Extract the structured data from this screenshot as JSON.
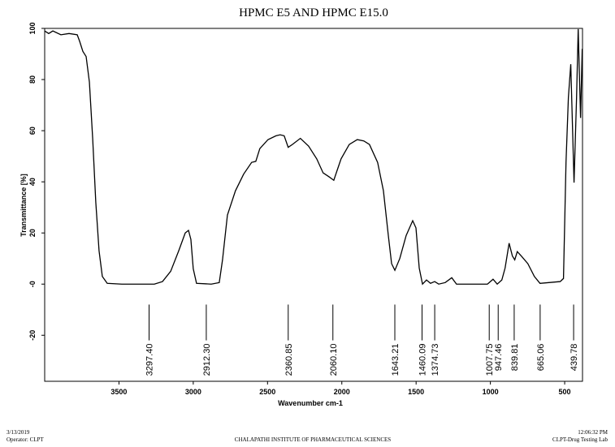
{
  "chart_data": {
    "type": "line",
    "title": "HPMC E5 AND HPMC E15.0",
    "xlabel": "Wavenumber cm-1",
    "ylabel": "Transmittance [%]",
    "xlim": [
      4000,
      380
    ],
    "ylim": [
      -38,
      100
    ],
    "xticks": [
      3500,
      3000,
      2500,
      2000,
      1500,
      1000,
      500
    ],
    "yticks": [
      100,
      80,
      60,
      40,
      20,
      {
        "value": 0,
        "label": "-0"
      },
      -20
    ],
    "color": "#000000",
    "x": [
      4000,
      3973,
      3945,
      3891,
      3836,
      3781,
      3765,
      3743,
      3721,
      3699,
      3677,
      3656,
      3634,
      3612,
      3579,
      3481,
      3371,
      3262,
      3207,
      3152,
      3098,
      3054,
      3032,
      3016,
      3000,
      2978,
      2879,
      2825,
      2803,
      2770,
      2716,
      2661,
      2607,
      2579,
      2552,
      2497,
      2443,
      2415,
      2388,
      2361,
      2333,
      2279,
      2224,
      2169,
      2126,
      2087,
      2054,
      2032,
      2005,
      1950,
      1896,
      1852,
      1814,
      1759,
      1720,
      1687,
      1665,
      1643,
      1610,
      1567,
      1523,
      1501,
      1479,
      1457,
      1430,
      1403,
      1375,
      1348,
      1304,
      1260,
      1228,
      1129,
      1020,
      982,
      954,
      923,
      901,
      874,
      852,
      836,
      819,
      792,
      748,
      704,
      666,
      530,
      508,
      491,
      475,
      459,
      437,
      420,
      409,
      393,
      382
    ],
    "values": [
      99,
      98,
      99,
      97.5,
      98,
      97.5,
      95,
      91,
      89,
      79,
      57,
      32,
      13,
      3,
      0.3,
      0,
      0,
      0,
      1,
      5,
      13,
      20,
      21,
      17.5,
      6,
      0.3,
      0,
      0.6,
      9.5,
      27,
      36.5,
      43,
      47.6,
      48,
      53,
      56.5,
      58,
      58.4,
      58,
      53.5,
      54.6,
      57,
      54,
      49,
      43.5,
      42,
      40.6,
      44.4,
      49,
      54.6,
      56.5,
      56,
      54.6,
      47.6,
      36.5,
      19,
      8,
      5.4,
      10,
      19,
      24.8,
      22,
      6.3,
      0,
      1.6,
      0.3,
      1,
      0,
      0.6,
      2.5,
      0,
      0,
      0,
      1.9,
      0,
      1.6,
      6.3,
      16,
      11,
      9.5,
      12.7,
      11,
      8,
      3,
      0.3,
      1,
      2.2,
      47.6,
      73,
      86,
      39.7,
      73,
      99.7,
      65,
      92
    ],
    "peaks": [
      {
        "value": 3297.4,
        "label": "3297.40"
      },
      {
        "value": 2912.3,
        "label": "2912.30"
      },
      {
        "value": 2360.85,
        "label": "2360.85"
      },
      {
        "value": 2060.1,
        "label": "2060.10"
      },
      {
        "value": 1643.21,
        "label": "1643.21"
      },
      {
        "value": 1460.09,
        "label": "1460.09"
      },
      {
        "value": 1374.73,
        "label": "1374.73"
      },
      {
        "value": 1007.75,
        "label": "1007.75"
      },
      {
        "value": 947.46,
        "label": "947.46"
      },
      {
        "value": 839.81,
        "label": "839.81"
      },
      {
        "value": 665.06,
        "label": "665.06"
      },
      {
        "value": 439.78,
        "label": "439.78"
      }
    ]
  },
  "footer": {
    "date": "3/13/2019",
    "operator": "Operator: CLPT",
    "institute": "CHALAPATHI INSTITUTE OF PHARMACEUTICAL SCIENCES",
    "time": "12:06:32 PM",
    "lab": "CLPT-Drug Testing Lab"
  }
}
